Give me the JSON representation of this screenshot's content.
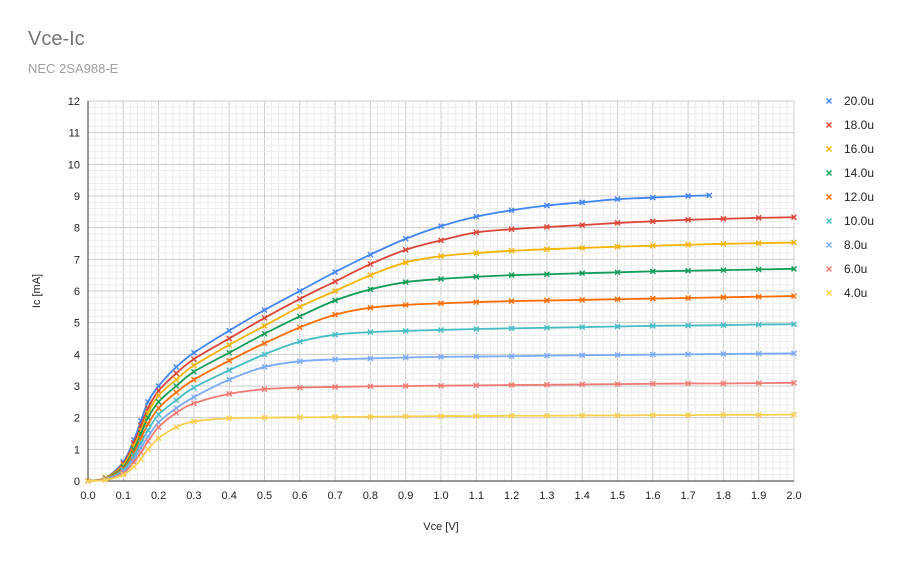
{
  "chart_data": {
    "type": "line",
    "title": "Vce-Ic",
    "subtitle": "NEC 2SA988-E",
    "xlabel": "Vce [V]",
    "ylabel": "Ic [mA]",
    "xlim": [
      0,
      2.0
    ],
    "ylim": [
      0,
      12
    ],
    "x_ticks": [
      "0.0",
      "0.1",
      "0.2",
      "0.3",
      "0.4",
      "0.5",
      "0.6",
      "0.7",
      "0.8",
      "0.9",
      "1.0",
      "1.1",
      "1.2",
      "1.3",
      "1.4",
      "1.5",
      "1.6",
      "1.7",
      "1.8",
      "1.9",
      "2.0"
    ],
    "y_ticks": [
      "0",
      "1",
      "2",
      "3",
      "4",
      "5",
      "6",
      "7",
      "8",
      "9",
      "10",
      "11",
      "12"
    ],
    "grid": true,
    "legend_position": "right",
    "series": [
      {
        "name": "20.0u",
        "color": "#4285f4",
        "points": [
          [
            0,
            0
          ],
          [
            0.05,
            0.1
          ],
          [
            0.1,
            0.6
          ],
          [
            0.13,
            1.3
          ],
          [
            0.15,
            1.9
          ],
          [
            0.17,
            2.5
          ],
          [
            0.2,
            3.0
          ],
          [
            0.25,
            3.6
          ],
          [
            0.3,
            4.05
          ],
          [
            0.4,
            4.75
          ],
          [
            0.5,
            5.4
          ],
          [
            0.6,
            6.0
          ],
          [
            0.7,
            6.6
          ],
          [
            0.8,
            7.15
          ],
          [
            0.9,
            7.65
          ],
          [
            1.0,
            8.05
          ],
          [
            1.1,
            8.35
          ],
          [
            1.2,
            8.55
          ],
          [
            1.3,
            8.7
          ],
          [
            1.4,
            8.8
          ],
          [
            1.5,
            8.9
          ],
          [
            1.6,
            8.95
          ],
          [
            1.7,
            9.0
          ],
          [
            1.76,
            9.02
          ]
        ]
      },
      {
        "name": "18.0u",
        "color": "#db4437",
        "points": [
          [
            0,
            0
          ],
          [
            0.05,
            0.1
          ],
          [
            0.1,
            0.55
          ],
          [
            0.13,
            1.2
          ],
          [
            0.15,
            1.75
          ],
          [
            0.17,
            2.3
          ],
          [
            0.2,
            2.85
          ],
          [
            0.25,
            3.4
          ],
          [
            0.3,
            3.85
          ],
          [
            0.4,
            4.5
          ],
          [
            0.5,
            5.15
          ],
          [
            0.6,
            5.75
          ],
          [
            0.7,
            6.3
          ],
          [
            0.8,
            6.85
          ],
          [
            0.9,
            7.3
          ],
          [
            1.0,
            7.6
          ],
          [
            1.1,
            7.85
          ],
          [
            1.2,
            7.95
          ],
          [
            1.3,
            8.02
          ],
          [
            1.4,
            8.08
          ],
          [
            1.5,
            8.15
          ],
          [
            1.6,
            8.2
          ],
          [
            1.7,
            8.25
          ],
          [
            1.8,
            8.28
          ],
          [
            1.9,
            8.31
          ],
          [
            2.0,
            8.33
          ]
        ]
      },
      {
        "name": "16.0u",
        "color": "#f4b400",
        "points": [
          [
            0,
            0
          ],
          [
            0.05,
            0.1
          ],
          [
            0.1,
            0.5
          ],
          [
            0.13,
            1.1
          ],
          [
            0.15,
            1.6
          ],
          [
            0.17,
            2.15
          ],
          [
            0.2,
            2.7
          ],
          [
            0.25,
            3.2
          ],
          [
            0.3,
            3.65
          ],
          [
            0.4,
            4.3
          ],
          [
            0.5,
            4.9
          ],
          [
            0.6,
            5.5
          ],
          [
            0.7,
            6.0
          ],
          [
            0.8,
            6.5
          ],
          [
            0.9,
            6.9
          ],
          [
            1.0,
            7.1
          ],
          [
            1.1,
            7.2
          ],
          [
            1.2,
            7.27
          ],
          [
            1.3,
            7.32
          ],
          [
            1.4,
            7.36
          ],
          [
            1.5,
            7.4
          ],
          [
            1.6,
            7.43
          ],
          [
            1.7,
            7.46
          ],
          [
            1.8,
            7.49
          ],
          [
            1.9,
            7.51
          ],
          [
            2.0,
            7.53
          ]
        ]
      },
      {
        "name": "14.0u",
        "color": "#0f9d58",
        "points": [
          [
            0,
            0
          ],
          [
            0.05,
            0.08
          ],
          [
            0.1,
            0.45
          ],
          [
            0.13,
            1.0
          ],
          [
            0.15,
            1.5
          ],
          [
            0.17,
            2.0
          ],
          [
            0.2,
            2.5
          ],
          [
            0.25,
            3.0
          ],
          [
            0.3,
            3.45
          ],
          [
            0.4,
            4.05
          ],
          [
            0.5,
            4.65
          ],
          [
            0.6,
            5.2
          ],
          [
            0.7,
            5.7
          ],
          [
            0.8,
            6.05
          ],
          [
            0.9,
            6.28
          ],
          [
            1.0,
            6.38
          ],
          [
            1.1,
            6.45
          ],
          [
            1.2,
            6.5
          ],
          [
            1.3,
            6.53
          ],
          [
            1.4,
            6.56
          ],
          [
            1.5,
            6.59
          ],
          [
            1.6,
            6.62
          ],
          [
            1.7,
            6.64
          ],
          [
            1.8,
            6.66
          ],
          [
            1.9,
            6.68
          ],
          [
            2.0,
            6.7
          ]
        ]
      },
      {
        "name": "12.0u",
        "color": "#ff6d01",
        "points": [
          [
            0,
            0
          ],
          [
            0.05,
            0.07
          ],
          [
            0.1,
            0.4
          ],
          [
            0.13,
            0.9
          ],
          [
            0.15,
            1.35
          ],
          [
            0.17,
            1.8
          ],
          [
            0.2,
            2.3
          ],
          [
            0.25,
            2.8
          ],
          [
            0.3,
            3.2
          ],
          [
            0.4,
            3.8
          ],
          [
            0.5,
            4.35
          ],
          [
            0.6,
            4.85
          ],
          [
            0.7,
            5.25
          ],
          [
            0.8,
            5.47
          ],
          [
            0.9,
            5.56
          ],
          [
            1.0,
            5.61
          ],
          [
            1.1,
            5.65
          ],
          [
            1.2,
            5.68
          ],
          [
            1.3,
            5.7
          ],
          [
            1.4,
            5.72
          ],
          [
            1.5,
            5.74
          ],
          [
            1.6,
            5.76
          ],
          [
            1.7,
            5.78
          ],
          [
            1.8,
            5.8
          ],
          [
            1.9,
            5.82
          ],
          [
            2.0,
            5.84
          ]
        ]
      },
      {
        "name": "10.0u",
        "color": "#46bdc6",
        "points": [
          [
            0,
            0
          ],
          [
            0.05,
            0.06
          ],
          [
            0.1,
            0.35
          ],
          [
            0.13,
            0.8
          ],
          [
            0.15,
            1.2
          ],
          [
            0.17,
            1.6
          ],
          [
            0.2,
            2.1
          ],
          [
            0.25,
            2.55
          ],
          [
            0.3,
            2.95
          ],
          [
            0.4,
            3.5
          ],
          [
            0.5,
            4.0
          ],
          [
            0.6,
            4.4
          ],
          [
            0.7,
            4.62
          ],
          [
            0.8,
            4.7
          ],
          [
            0.9,
            4.74
          ],
          [
            1.0,
            4.77
          ],
          [
            1.1,
            4.8
          ],
          [
            1.2,
            4.82
          ],
          [
            1.3,
            4.84
          ],
          [
            1.4,
            4.86
          ],
          [
            1.5,
            4.88
          ],
          [
            1.6,
            4.9
          ],
          [
            1.7,
            4.91
          ],
          [
            1.8,
            4.92
          ],
          [
            1.9,
            4.94
          ],
          [
            2.0,
            4.95
          ]
        ]
      },
      {
        "name": "8.0u",
        "color": "#7baaf7",
        "points": [
          [
            0,
            0
          ],
          [
            0.05,
            0.05
          ],
          [
            0.1,
            0.3
          ],
          [
            0.13,
            0.7
          ],
          [
            0.15,
            1.05
          ],
          [
            0.17,
            1.4
          ],
          [
            0.2,
            1.85
          ],
          [
            0.25,
            2.3
          ],
          [
            0.3,
            2.65
          ],
          [
            0.4,
            3.2
          ],
          [
            0.5,
            3.6
          ],
          [
            0.6,
            3.78
          ],
          [
            0.7,
            3.84
          ],
          [
            0.8,
            3.87
          ],
          [
            0.9,
            3.9
          ],
          [
            1.0,
            3.92
          ],
          [
            1.1,
            3.93
          ],
          [
            1.2,
            3.94
          ],
          [
            1.3,
            3.96
          ],
          [
            1.4,
            3.97
          ],
          [
            1.5,
            3.98
          ],
          [
            1.6,
            3.99
          ],
          [
            1.7,
            4.0
          ],
          [
            1.8,
            4.01
          ],
          [
            1.9,
            4.02
          ],
          [
            2.0,
            4.03
          ]
        ]
      },
      {
        "name": "6.0u",
        "color": "#f07b72",
        "points": [
          [
            0,
            0
          ],
          [
            0.05,
            0.04
          ],
          [
            0.1,
            0.25
          ],
          [
            0.13,
            0.6
          ],
          [
            0.15,
            0.9
          ],
          [
            0.17,
            1.25
          ],
          [
            0.2,
            1.7
          ],
          [
            0.25,
            2.15
          ],
          [
            0.3,
            2.45
          ],
          [
            0.4,
            2.75
          ],
          [
            0.5,
            2.9
          ],
          [
            0.6,
            2.95
          ],
          [
            0.7,
            2.97
          ],
          [
            0.8,
            2.99
          ],
          [
            0.9,
            3.0
          ],
          [
            1.0,
            3.01
          ],
          [
            1.1,
            3.02
          ],
          [
            1.2,
            3.03
          ],
          [
            1.3,
            3.04
          ],
          [
            1.4,
            3.05
          ],
          [
            1.5,
            3.06
          ],
          [
            1.6,
            3.07
          ],
          [
            1.7,
            3.08
          ],
          [
            1.8,
            3.08
          ],
          [
            1.9,
            3.09
          ],
          [
            2.0,
            3.1
          ]
        ]
      },
      {
        "name": "4.0u",
        "color": "#fcd04f",
        "points": [
          [
            0,
            0
          ],
          [
            0.05,
            0.03
          ],
          [
            0.1,
            0.2
          ],
          [
            0.13,
            0.45
          ],
          [
            0.15,
            0.7
          ],
          [
            0.17,
            1.0
          ],
          [
            0.2,
            1.35
          ],
          [
            0.25,
            1.7
          ],
          [
            0.3,
            1.88
          ],
          [
            0.4,
            1.98
          ],
          [
            0.5,
            2.0
          ],
          [
            0.6,
            2.01
          ],
          [
            0.7,
            2.02
          ],
          [
            0.8,
            2.03
          ],
          [
            0.9,
            2.04
          ],
          [
            1.0,
            2.05
          ],
          [
            1.1,
            2.05
          ],
          [
            1.2,
            2.06
          ],
          [
            1.3,
            2.06
          ],
          [
            1.4,
            2.07
          ],
          [
            1.5,
            2.07
          ],
          [
            1.6,
            2.08
          ],
          [
            1.7,
            2.08
          ],
          [
            1.8,
            2.09
          ],
          [
            1.9,
            2.09
          ],
          [
            2.0,
            2.1
          ]
        ]
      }
    ]
  }
}
